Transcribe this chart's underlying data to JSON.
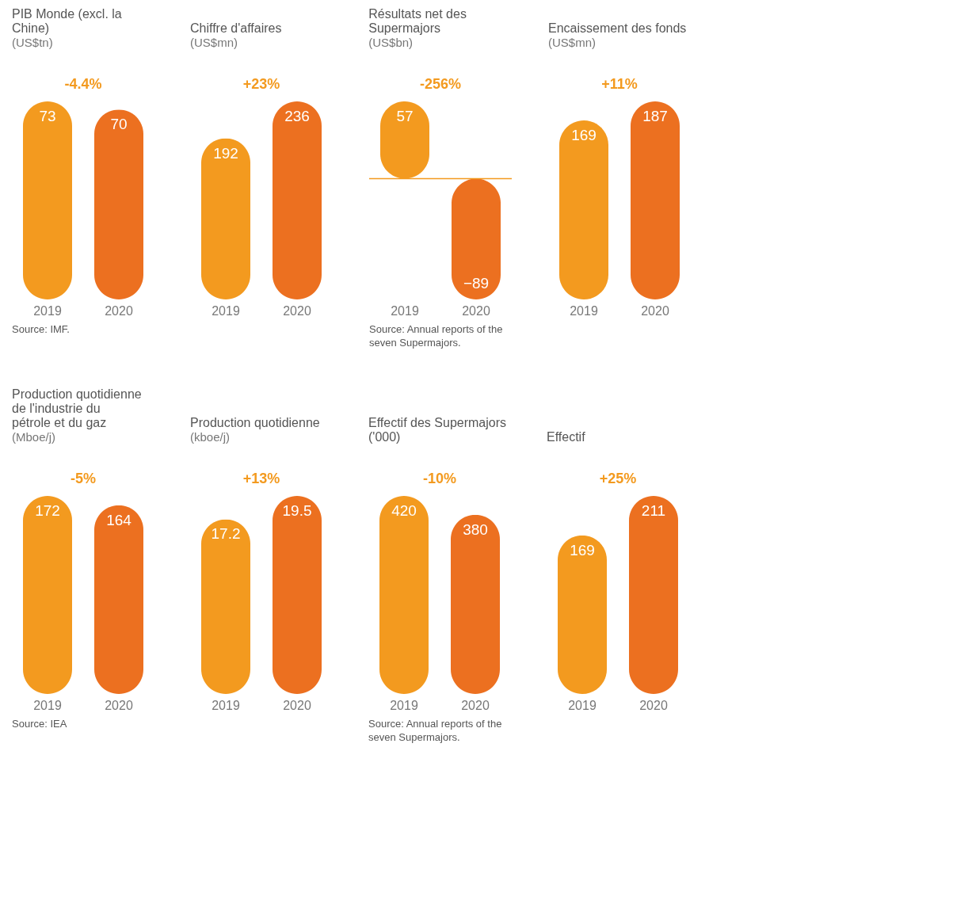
{
  "chart_data": [
    {
      "type": "bar",
      "title": "PIB Monde (excl. la Chine)",
      "subtitle": "(US$tn)",
      "categories": [
        "2019",
        "2020"
      ],
      "values": [
        73,
        70
      ],
      "colors": [
        "#f39a1f",
        "#ec7020"
      ],
      "data_labels": true,
      "annotations": [
        "-4.4%",
        "Source: IMF."
      ]
    },
    {
      "type": "bar",
      "title": "Chiffre d'affaires",
      "subtitle": "(US$mn)",
      "categories": [
        "2019",
        "2020"
      ],
      "values": [
        192,
        236
      ],
      "colors": [
        "#f39a1f",
        "#ec7020"
      ],
      "data_labels": true,
      "annotations": [
        "+23%"
      ]
    },
    {
      "type": "bar",
      "title": "Résultats net des Supermajors",
      "subtitle": "(US$bn)",
      "categories": [
        "2019",
        "2020"
      ],
      "values": [
        57,
        -89
      ],
      "colors": [
        "#f39a1f",
        "#ec7020"
      ],
      "data_labels": true,
      "annotations": [
        "-256%",
        "Source: Annual reports of the seven Supermajors."
      ],
      "ref_lines": [
        {
          "axis": "y",
          "value": 0,
          "color": "#f39a1f"
        }
      ]
    },
    {
      "type": "bar",
      "title": "Encaissement des fonds",
      "subtitle": "(US$mn)",
      "categories": [
        "2019",
        "2020"
      ],
      "values": [
        169,
        187
      ],
      "colors": [
        "#f39a1f",
        "#ec7020"
      ],
      "data_labels": true,
      "annotations": [
        "+11%"
      ]
    },
    {
      "type": "bar",
      "title": "Production quotidienne de l'industrie du pétrole et du gaz",
      "subtitle": "(Mboe/j)",
      "categories": [
        "2019",
        "2020"
      ],
      "values": [
        172,
        164
      ],
      "colors": [
        "#f39a1f",
        "#ec7020"
      ],
      "data_labels": true,
      "annotations": [
        "-5%",
        "Source: IEA"
      ]
    },
    {
      "type": "bar",
      "title": "Production quotidienne",
      "subtitle": "(kboe/j)",
      "categories": [
        "2019",
        "2020"
      ],
      "values": [
        17.2,
        19.5
      ],
      "colors": [
        "#f39a1f",
        "#ec7020"
      ],
      "data_labels": true,
      "annotations": [
        "+13%"
      ]
    },
    {
      "type": "bar",
      "title": "Effectif des Supermajors ('000)",
      "categories": [
        "2019",
        "2020"
      ],
      "values": [
        420,
        380
      ],
      "colors": [
        "#f39a1f",
        "#ec7020"
      ],
      "data_labels": true,
      "annotations": [
        "-10%",
        "Source: Annual reports of the seven Supermajors."
      ]
    },
    {
      "type": "bar",
      "title": "Effectif",
      "categories": [
        "2019",
        "2020"
      ],
      "values": [
        169,
        211
      ],
      "colors": [
        "#f39a1f",
        "#ec7020"
      ],
      "data_labels": true,
      "annotations": [
        "+25%"
      ]
    }
  ]
}
